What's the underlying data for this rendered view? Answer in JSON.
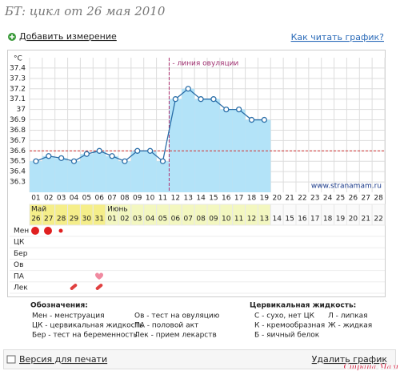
{
  "header": {
    "title": "БТ: цикл от 26 мая 2010",
    "add_link": "Добавить измерение",
    "help_link": "Как читать график?"
  },
  "chart_data": {
    "type": "line",
    "y_unit": "°C",
    "categories": [
      "01",
      "02",
      "03",
      "04",
      "05",
      "06",
      "07",
      "08",
      "09",
      "10",
      "11",
      "12",
      "13",
      "14",
      "15",
      "16",
      "17",
      "18",
      "19",
      "20",
      "21",
      "22",
      "23",
      "24",
      "25",
      "26",
      "27",
      "28"
    ],
    "values": [
      36.5,
      36.55,
      36.53,
      36.5,
      36.57,
      36.6,
      36.55,
      36.5,
      36.6,
      36.6,
      36.5,
      37.1,
      37.2,
      37.1,
      37.1,
      37.0,
      37.0,
      36.9,
      36.9,
      null,
      null,
      null,
      null,
      null,
      null,
      null,
      null,
      null
    ],
    "color": "#2a6ea8",
    "fill": "#b3e3f8",
    "ylim": [
      36.2,
      37.5
    ],
    "yticks": [
      36.3,
      36.4,
      36.5,
      36.6,
      36.7,
      36.8,
      36.9,
      37,
      37.1,
      37.2,
      37.3,
      37.4
    ],
    "coverline": 36.6,
    "annotation": "- линия овуляции",
    "watermark": "www.stranamam.ru",
    "grid": true
  },
  "date_row": {
    "months": [
      "Май",
      "Июнь"
    ],
    "days": [
      "26",
      "27",
      "28",
      "29",
      "30",
      "31",
      "01",
      "02",
      "03",
      "04",
      "05",
      "06",
      "07",
      "08",
      "09",
      "10",
      "11",
      "12",
      "13",
      "14",
      "15",
      "16",
      "17",
      "18",
      "19",
      "20",
      "21",
      "22"
    ]
  },
  "rows": [
    "Мен",
    "ЦК",
    "Бер",
    "Ов",
    "ПА",
    "Лек"
  ],
  "legend": {
    "title": "Обозначения:",
    "items": [
      "Мен - менструация",
      "ЦК - цервикальная жидкость",
      "Бер - тест на беременность",
      "Ов - тест на овуляцию",
      "ПА - половой акт",
      "Лек - прием лекарств"
    ],
    "cm_title": "Цервикальная жидкость:",
    "cm_items": [
      "С - сухо, нет ЦК",
      "Л - липкая",
      "К - кремообразная",
      "Ж - жидкая",
      "Б - яичный белок"
    ]
  },
  "footer": {
    "print": "Версия для печати",
    "delete": "Удалить график",
    "logo": "Страна Мам"
  }
}
